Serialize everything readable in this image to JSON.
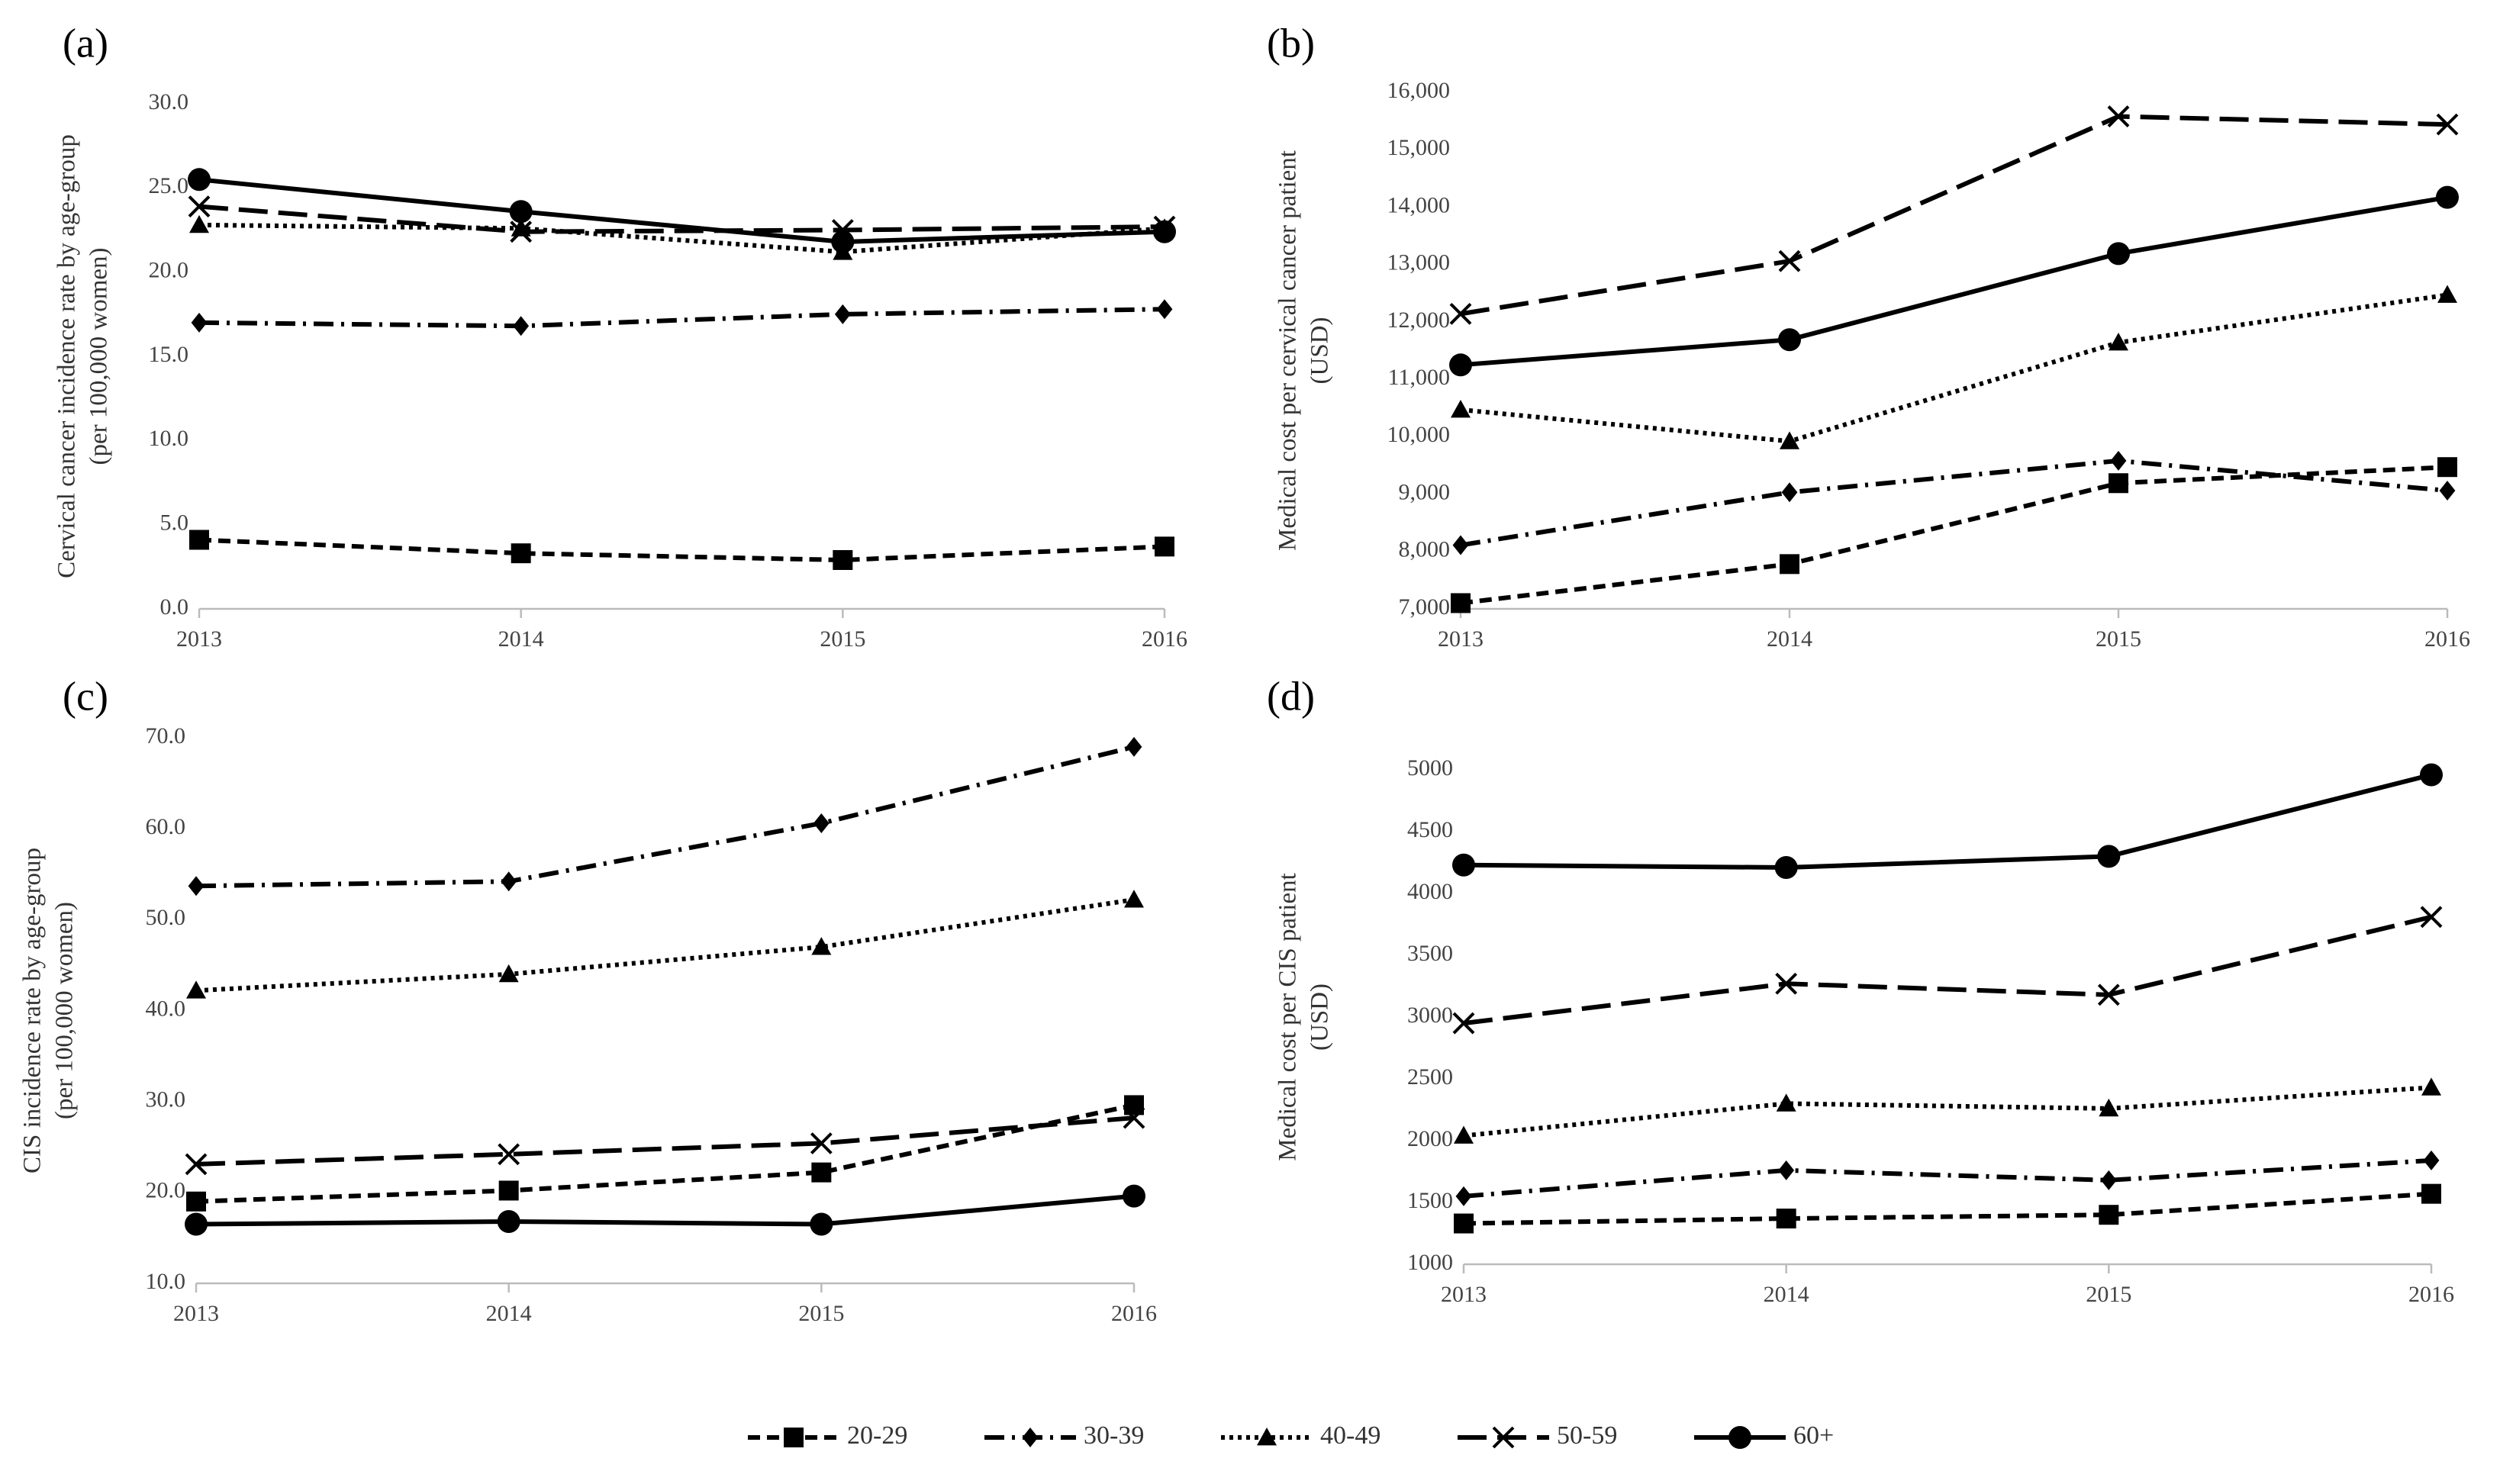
{
  "chart_data": [
    {
      "type": "line",
      "label": "(a)",
      "ylabel": [
        "Cervical cancer incidence rate by age-group",
        "(per 100,000 women)"
      ],
      "categories": [
        "2013",
        "2014",
        "2015",
        "2016"
      ],
      "ylim": [
        0,
        30
      ],
      "yticks": [
        {
          "value": 0,
          "label": "0.0"
        },
        {
          "value": 5,
          "label": "5.0"
        },
        {
          "value": 10,
          "label": "10.0"
        },
        {
          "value": 15,
          "label": "15.0"
        },
        {
          "value": 20,
          "label": "20.0"
        },
        {
          "value": 25,
          "label": "25.0"
        },
        {
          "value": 30,
          "label": "30.0"
        }
      ],
      "series": [
        {
          "name": "20-29",
          "color": "#000000",
          "dash": "dashed",
          "marker": "square",
          "values": [
            4.1,
            3.3,
            2.9,
            3.7
          ]
        },
        {
          "name": "30-39",
          "color": "#000000",
          "dash": "dashdot",
          "marker": "diamond",
          "values": [
            17.0,
            16.8,
            17.5,
            17.8
          ]
        },
        {
          "name": "40-49",
          "color": "#000000",
          "dash": "dotted",
          "marker": "triangle",
          "values": [
            22.8,
            22.6,
            21.2,
            22.6
          ]
        },
        {
          "name": "50-59",
          "color": "#000000",
          "dash": "longdash",
          "marker": "x",
          "values": [
            23.9,
            22.4,
            22.5,
            22.7
          ]
        },
        {
          "name": "60+",
          "color": "#000000",
          "dash": "solid",
          "marker": "circle",
          "values": [
            25.5,
            23.6,
            21.8,
            22.4
          ]
        }
      ]
    },
    {
      "type": "line",
      "label": "(b)",
      "ylabel": [
        "Medical cost per cervical cancer patient",
        "(USD)"
      ],
      "categories": [
        "2013",
        "2014",
        "2015",
        "2016"
      ],
      "ylim": [
        7000,
        16000
      ],
      "yticks": [
        {
          "value": 7000,
          "label": "7,000"
        },
        {
          "value": 8000,
          "label": "8,000"
        },
        {
          "value": 9000,
          "label": "9,000"
        },
        {
          "value": 10000,
          "label": "10,000"
        },
        {
          "value": 11000,
          "label": "11,000"
        },
        {
          "value": 12000,
          "label": "12,000"
        },
        {
          "value": 13000,
          "label": "13,000"
        },
        {
          "value": 14000,
          "label": "14,000"
        },
        {
          "value": 15000,
          "label": "15,000"
        },
        {
          "value": 16000,
          "label": "16,000"
        }
      ],
      "series": [
        {
          "name": "20-29",
          "color": "#000000",
          "dash": "dashed",
          "marker": "square",
          "values": [
            7100,
            7780,
            9190,
            9470
          ]
        },
        {
          "name": "30-39",
          "color": "#000000",
          "dash": "dashdot",
          "marker": "diamond",
          "values": [
            8110,
            9030,
            9580,
            9060
          ]
        },
        {
          "name": "40-49",
          "color": "#000000",
          "dash": "dotted",
          "marker": "triangle",
          "values": [
            10470,
            9920,
            11640,
            12470
          ]
        },
        {
          "name": "50-59",
          "color": "#000000",
          "dash": "longdash",
          "marker": "x",
          "values": [
            12140,
            13060,
            15580,
            15440
          ]
        },
        {
          "name": "60+",
          "color": "#000000",
          "dash": "solid",
          "marker": "circle",
          "values": [
            11250,
            11690,
            13190,
            14170
          ]
        }
      ]
    },
    {
      "type": "line",
      "label": "(c)",
      "ylabel": [
        "CIS incidence rate by age-group",
        "(per 100,000 women)"
      ],
      "categories": [
        "2013",
        "2014",
        "2015",
        "2016"
      ],
      "ylim": [
        10,
        70
      ],
      "yticks": [
        {
          "value": 10,
          "label": "10.0"
        },
        {
          "value": 20,
          "label": "20.0"
        },
        {
          "value": 30,
          "label": "30.0"
        },
        {
          "value": 40,
          "label": "40.0"
        },
        {
          "value": 50,
          "label": "50.0"
        },
        {
          "value": 60,
          "label": "60.0"
        },
        {
          "value": 70,
          "label": "70.0"
        }
      ],
      "series": [
        {
          "name": "20-29",
          "color": "#000000",
          "dash": "dashed",
          "marker": "square",
          "values": [
            19.0,
            20.2,
            22.2,
            29.6
          ]
        },
        {
          "name": "30-39",
          "color": "#000000",
          "dash": "dashdot",
          "marker": "diamond",
          "values": [
            53.7,
            54.2,
            60.6,
            69.0
          ]
        },
        {
          "name": "40-49",
          "color": "#000000",
          "dash": "dotted",
          "marker": "triangle",
          "values": [
            42.2,
            44.0,
            47.0,
            52.2
          ]
        },
        {
          "name": "50-59",
          "color": "#000000",
          "dash": "longdash",
          "marker": "x",
          "values": [
            23.1,
            24.2,
            25.4,
            28.2
          ]
        },
        {
          "name": "60+",
          "color": "#000000",
          "dash": "solid",
          "marker": "circle",
          "values": [
            16.5,
            16.8,
            16.5,
            19.6
          ]
        }
      ]
    },
    {
      "type": "line",
      "label": "(d)",
      "ylabel": [
        "Medical cost per CIS patient",
        "(USD)"
      ],
      "categories": [
        "2013",
        "2014",
        "2015",
        "2016"
      ],
      "ylim": [
        1000,
        5000
      ],
      "yticks": [
        1000,
        1500,
        2000,
        2500,
        3000,
        3500,
        4000,
        4500,
        5000
      ],
      "series": [
        {
          "name": "20-29",
          "color": "#000000",
          "dash": "dashed",
          "marker": "square",
          "values": [
            1330,
            1370,
            1400,
            1570
          ]
        },
        {
          "name": "30-39",
          "color": "#000000",
          "dash": "dashdot",
          "marker": "diamond",
          "values": [
            1550,
            1760,
            1680,
            1840
          ]
        },
        {
          "name": "40-49",
          "color": "#000000",
          "dash": "dotted",
          "marker": "triangle",
          "values": [
            2040,
            2300,
            2260,
            2430
          ]
        },
        {
          "name": "50-59",
          "color": "#000000",
          "dash": "longdash",
          "marker": "x",
          "values": [
            2950,
            3270,
            3180,
            3810
          ]
        },
        {
          "name": "60+",
          "color": "#000000",
          "dash": "solid",
          "marker": "circle",
          "values": [
            4230,
            4210,
            4300,
            4960
          ]
        }
      ]
    }
  ]
}
